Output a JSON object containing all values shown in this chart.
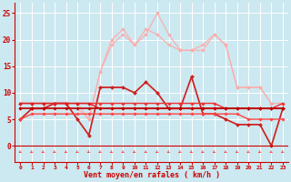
{
  "xlabel": "Vent moyen/en rafales ( km/h )",
  "bg_color": "#cce8f0",
  "grid_color": "#ffffff",
  "x": [
    0,
    1,
    2,
    3,
    4,
    5,
    6,
    7,
    8,
    9,
    10,
    11,
    12,
    13,
    14,
    15,
    16,
    17,
    18,
    19,
    20,
    21,
    22,
    23
  ],
  "ylim": [
    -3,
    27
  ],
  "yticks": [
    0,
    5,
    10,
    15,
    20,
    25
  ],
  "xlim": [
    -0.5,
    23.5
  ],
  "series": [
    {
      "color": "#ffaaaa",
      "lw": 0.8,
      "marker": "D",
      "markersize": 1.8,
      "values": [
        8,
        8,
        8,
        8,
        8,
        8,
        5,
        14,
        20,
        22,
        19,
        22,
        21,
        19,
        18,
        18,
        18,
        21,
        19,
        11,
        11,
        11,
        8,
        8
      ]
    },
    {
      "color": "#ffaaaa",
      "lw": 0.8,
      "marker": "D",
      "markersize": 1.8,
      "values": [
        7,
        7,
        7,
        7,
        7,
        7,
        5,
        14,
        19,
        21,
        19,
        21,
        25,
        21,
        18,
        18,
        19,
        21,
        19,
        11,
        11,
        11,
        8,
        8
      ]
    },
    {
      "color": "#ff8888",
      "lw": 0.8,
      "marker": "D",
      "markersize": 1.8,
      "values": [
        5,
        7,
        7,
        8,
        8,
        5,
        2,
        11,
        11,
        11,
        10,
        12,
        10,
        7,
        7,
        13,
        6,
        6,
        5,
        4,
        4,
        4,
        0,
        7
      ]
    },
    {
      "color": "#cc2222",
      "lw": 1.2,
      "marker": "D",
      "markersize": 2.0,
      "values": [
        5,
        7,
        7,
        8,
        8,
        5,
        2,
        11,
        11,
        11,
        10,
        12,
        10,
        7,
        7,
        13,
        6,
        6,
        5,
        4,
        4,
        4,
        0,
        7
      ]
    },
    {
      "color": "#ee3333",
      "lw": 1.0,
      "marker": "D",
      "markersize": 1.8,
      "values": [
        8,
        8,
        8,
        8,
        8,
        8,
        8,
        8,
        8,
        8,
        8,
        8,
        8,
        8,
        8,
        8,
        8,
        8,
        7,
        7,
        7,
        7,
        7,
        8
      ]
    },
    {
      "color": "#dd2222",
      "lw": 1.0,
      "marker": "D",
      "markersize": 1.8,
      "values": [
        8,
        8,
        8,
        8,
        8,
        8,
        8,
        7,
        7,
        7,
        7,
        7,
        7,
        7,
        7,
        7,
        7,
        7,
        7,
        7,
        7,
        7,
        7,
        7
      ]
    },
    {
      "color": "#bb0000",
      "lw": 1.2,
      "marker": "D",
      "markersize": 1.8,
      "values": [
        7,
        7,
        7,
        7,
        7,
        7,
        7,
        7,
        7,
        7,
        7,
        7,
        7,
        7,
        7,
        7,
        7,
        7,
        7,
        7,
        7,
        7,
        7,
        7
      ]
    },
    {
      "color": "#ff4444",
      "lw": 1.0,
      "marker": "D",
      "markersize": 1.8,
      "values": [
        5,
        6,
        6,
        6,
        6,
        6,
        6,
        6,
        6,
        6,
        6,
        6,
        6,
        6,
        6,
        6,
        6,
        6,
        6,
        6,
        5,
        5,
        5,
        5
      ]
    }
  ],
  "wind_arrow_color": "#ff3333",
  "tick_label_color": "#cc0000",
  "axis_color": "#cc0000"
}
